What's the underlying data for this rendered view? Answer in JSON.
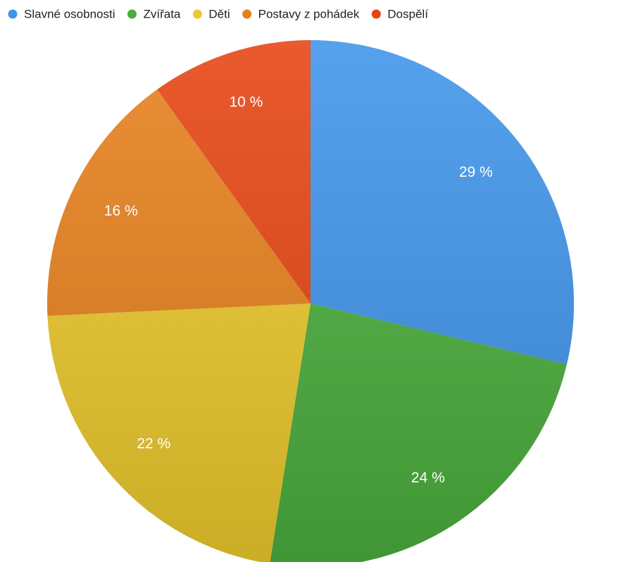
{
  "chart_data": {
    "type": "pie",
    "categories": [
      "Slavné osobnosti",
      "Zvířata",
      "Děti",
      "Postavy z pohádek",
      "Dospělí"
    ],
    "values": [
      29,
      24,
      22,
      16,
      10
    ],
    "value_labels": [
      "29 %",
      "24 %",
      "22 %",
      "16 %",
      "10 %"
    ],
    "colors": [
      "#3f94ea",
      "#4aae3c",
      "#ecc92c",
      "#e6801c",
      "#e64412"
    ],
    "legend": "top"
  }
}
